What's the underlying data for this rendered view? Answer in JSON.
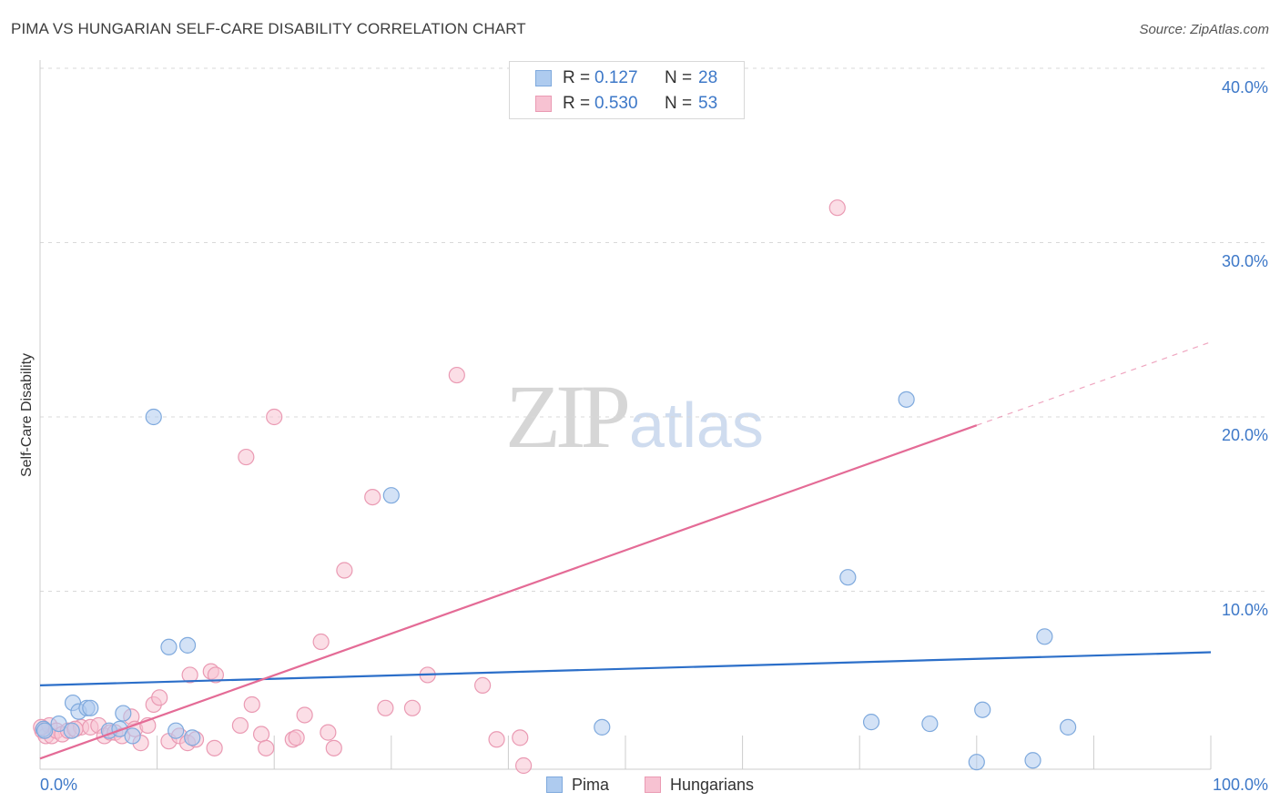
{
  "header": {
    "title": "PIMA VS HUNGARIAN SELF-CARE DISABILITY CORRELATION CHART",
    "source": "Source: ZipAtlas.com"
  },
  "watermark": {
    "zip": "ZIP",
    "atlas": "atlas"
  },
  "stats": {
    "pima": {
      "r_label": "R =",
      "r_value": "0.127",
      "n_label": "N =",
      "n_value": "28"
    },
    "hungarians": {
      "r_label": "R =",
      "r_value": "0.530",
      "n_label": "N =",
      "n_value": "53"
    }
  },
  "legend": {
    "pima": "Pima",
    "hungarians": "Hungarians"
  },
  "colors": {
    "pima_fill": "#aecbef",
    "pima_stroke": "#7ea9dd",
    "pima_line": "#2c6fc9",
    "hung_fill": "#f7c2d2",
    "hung_stroke": "#ea9ab3",
    "hung_line": "#e46b96",
    "grid": "#d9d9d9",
    "tick_text": "#3d78c8"
  },
  "chart_data": {
    "type": "scatter",
    "title": "PIMA VS HUNGARIAN SELF-CARE DISABILITY CORRELATION CHART",
    "xlabel": "",
    "ylabel": "Self-Care Disability",
    "xlim": [
      0,
      100
    ],
    "ylim": [
      0,
      40
    ],
    "x_tick_labels": [
      "0.0%",
      "100.0%"
    ],
    "y_ticks": [
      10,
      20,
      30,
      40
    ],
    "y_tick_labels": [
      "10.0%",
      "20.0%",
      "30.0%",
      "40.0%"
    ],
    "grid": true,
    "series": [
      {
        "name": "Pima",
        "points": [
          [
            0.3,
            2.1
          ],
          [
            1.6,
            2.4
          ],
          [
            2.7,
            2.0
          ],
          [
            2.8,
            3.6
          ],
          [
            3.3,
            3.1
          ],
          [
            4.0,
            3.3
          ],
          [
            4.3,
            3.3
          ],
          [
            5.9,
            2.0
          ],
          [
            6.8,
            2.1
          ],
          [
            7.1,
            3.0
          ],
          [
            7.9,
            1.7
          ],
          [
            9.7,
            20.0
          ],
          [
            11.0,
            6.8
          ],
          [
            11.6,
            2.0
          ],
          [
            12.6,
            6.9
          ],
          [
            13.0,
            1.6
          ],
          [
            30.0,
            15.5
          ],
          [
            48.0,
            2.2
          ],
          [
            69.0,
            10.8
          ],
          [
            71.0,
            2.5
          ],
          [
            74.0,
            21.0
          ],
          [
            76.0,
            2.4
          ],
          [
            80.0,
            0.2
          ],
          [
            80.5,
            3.2
          ],
          [
            84.8,
            0.3
          ],
          [
            85.8,
            7.4
          ],
          [
            87.8,
            2.2
          ],
          [
            0.4,
            2.0
          ]
        ],
        "trend": {
          "x": [
            0,
            100
          ],
          "y": [
            4.6,
            6.5
          ]
        }
      },
      {
        "name": "Hungarians",
        "points": [
          [
            0.2,
            2.0
          ],
          [
            0.5,
            1.7
          ],
          [
            0.8,
            2.3
          ],
          [
            1.0,
            1.7
          ],
          [
            1.4,
            2.0
          ],
          [
            1.9,
            1.8
          ],
          [
            2.4,
            2.0
          ],
          [
            3.5,
            2.2
          ],
          [
            4.3,
            2.2
          ],
          [
            5.0,
            2.3
          ],
          [
            5.5,
            1.7
          ],
          [
            6.0,
            1.9
          ],
          [
            6.4,
            1.9
          ],
          [
            7.0,
            1.7
          ],
          [
            7.8,
            2.8
          ],
          [
            8.1,
            2.1
          ],
          [
            8.6,
            1.3
          ],
          [
            9.2,
            2.3
          ],
          [
            9.7,
            3.5
          ],
          [
            10.2,
            3.9
          ],
          [
            11.0,
            1.4
          ],
          [
            11.9,
            1.7
          ],
          [
            12.6,
            1.3
          ],
          [
            12.8,
            5.2
          ],
          [
            13.3,
            1.5
          ],
          [
            14.6,
            5.4
          ],
          [
            14.9,
            1.0
          ],
          [
            15.0,
            5.2
          ],
          [
            17.1,
            2.3
          ],
          [
            17.6,
            17.7
          ],
          [
            18.1,
            3.5
          ],
          [
            18.9,
            1.8
          ],
          [
            19.3,
            1.0
          ],
          [
            20.0,
            20.0
          ],
          [
            21.6,
            1.5
          ],
          [
            21.9,
            1.6
          ],
          [
            22.6,
            2.9
          ],
          [
            24.0,
            7.1
          ],
          [
            24.6,
            1.9
          ],
          [
            25.1,
            1.0
          ],
          [
            26.0,
            11.2
          ],
          [
            28.4,
            15.4
          ],
          [
            29.5,
            3.3
          ],
          [
            31.8,
            3.3
          ],
          [
            33.1,
            5.2
          ],
          [
            35.6,
            22.4
          ],
          [
            37.8,
            4.6
          ],
          [
            39.0,
            1.5
          ],
          [
            41.0,
            1.6
          ],
          [
            41.3,
            0.0
          ],
          [
            68.1,
            32.0
          ],
          [
            0.1,
            2.2
          ],
          [
            3.0,
            2.1
          ]
        ],
        "trend": {
          "x": [
            0,
            100
          ],
          "y": [
            0.4,
            24.3
          ],
          "solid_until_x": 80
        }
      }
    ]
  }
}
